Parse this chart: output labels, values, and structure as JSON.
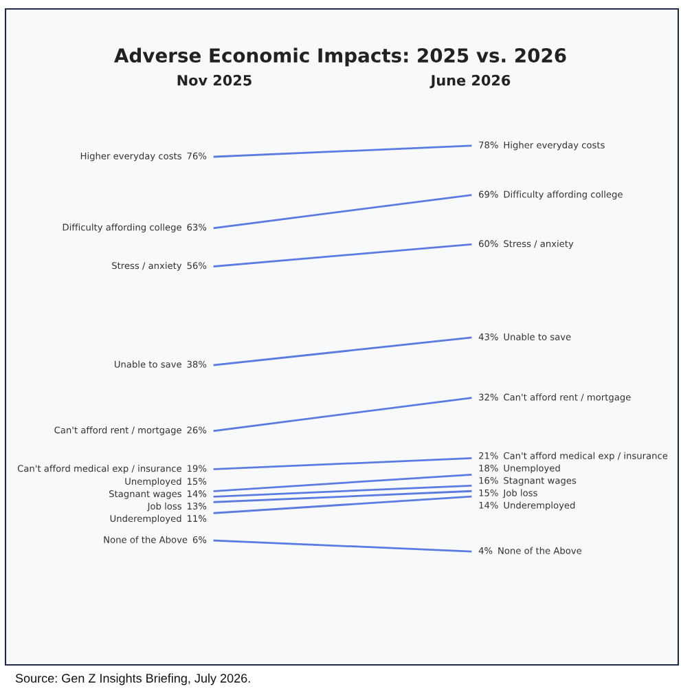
{
  "chart_data": {
    "type": "line",
    "title": "Adverse Economic Impacts: 2025 vs. 2026",
    "categories": [
      "Nov 2025",
      "June 2026"
    ],
    "series": [
      {
        "name": "Higher everyday costs",
        "color": "#5b7be0",
        "values": [
          76,
          78
        ],
        "value_labels": [
          "76%",
          "78%"
        ]
      },
      {
        "name": "Difficulty affording college",
        "color": "#5b7be0",
        "values": [
          63,
          69
        ],
        "value_labels": [
          "63%",
          "69%"
        ]
      },
      {
        "name": "Stress / anxiety",
        "color": "#5b7be0",
        "values": [
          56,
          60
        ],
        "value_labels": [
          "56%",
          "60%"
        ]
      },
      {
        "name": "Unable to save",
        "color": "#5b7be0",
        "values": [
          38,
          43
        ],
        "value_labels": [
          "38%",
          "43%"
        ]
      },
      {
        "name": "Can't afford rent / mortgage",
        "color": "#5b7be0",
        "values": [
          26,
          32
        ],
        "value_labels": [
          "26%",
          "32%"
        ]
      },
      {
        "name": "Can't afford medical exp / insurance",
        "color": "#5b7be0",
        "values": [
          19,
          21
        ],
        "value_labels": [
          "19%",
          "21%"
        ]
      },
      {
        "name": "Unemployed",
        "color": "#5b7be0",
        "values": [
          15,
          18
        ],
        "value_labels": [
          "15%",
          "18%"
        ]
      },
      {
        "name": "Stagnant wages",
        "color": "#5b7be0",
        "values": [
          14,
          16
        ],
        "value_labels": [
          "14%",
          "16%"
        ]
      },
      {
        "name": "Job loss",
        "color": "#5b7be0",
        "values": [
          13,
          15
        ],
        "value_labels": [
          "13%",
          "15%"
        ]
      },
      {
        "name": "Underemployed",
        "color": "#5b7be0",
        "values": [
          11,
          14
        ],
        "value_labels": [
          "11%",
          "14%"
        ]
      },
      {
        "name": "None of the Above",
        "color": "#5b7be0",
        "values": [
          6,
          4
        ],
        "value_labels": [
          "6%",
          "4%"
        ]
      }
    ],
    "annotations": [
      "Source: Gen Z Insights Briefing, July 2026."
    ],
    "grid": false,
    "legend": false,
    "tick_labels": "x",
    "marker": "none",
    "line_style": "solid"
  }
}
